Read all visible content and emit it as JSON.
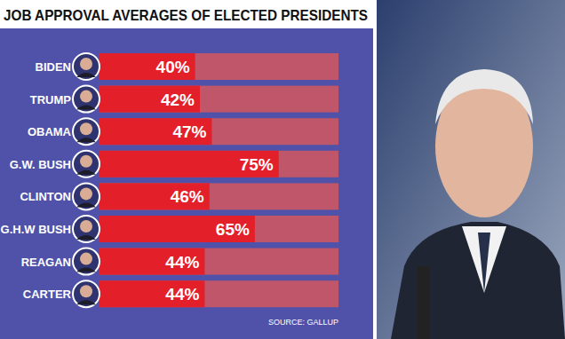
{
  "chart_data": {
    "type": "bar",
    "title": "JOB APPROVAL AVERAGES OF ELECTED PRESIDENTS",
    "categories": [
      "BIDEN",
      "TRUMP",
      "OBAMA",
      "G.W. BUSH",
      "CLINTON",
      "G.H.W BUSH",
      "REAGAN",
      "CARTER"
    ],
    "values": [
      40,
      42,
      47,
      75,
      46,
      65,
      44,
      44
    ],
    "value_labels": [
      "40%",
      "42%",
      "47%",
      "75%",
      "46%",
      "65%",
      "44%",
      "44%"
    ],
    "color": "#e3202a",
    "orientation": "horizontal",
    "data_labels": true,
    "tick_labels": false,
    "grid": false,
    "xlim": [
      0,
      100
    ],
    "source": "SOURCE: GALLUP"
  }
}
